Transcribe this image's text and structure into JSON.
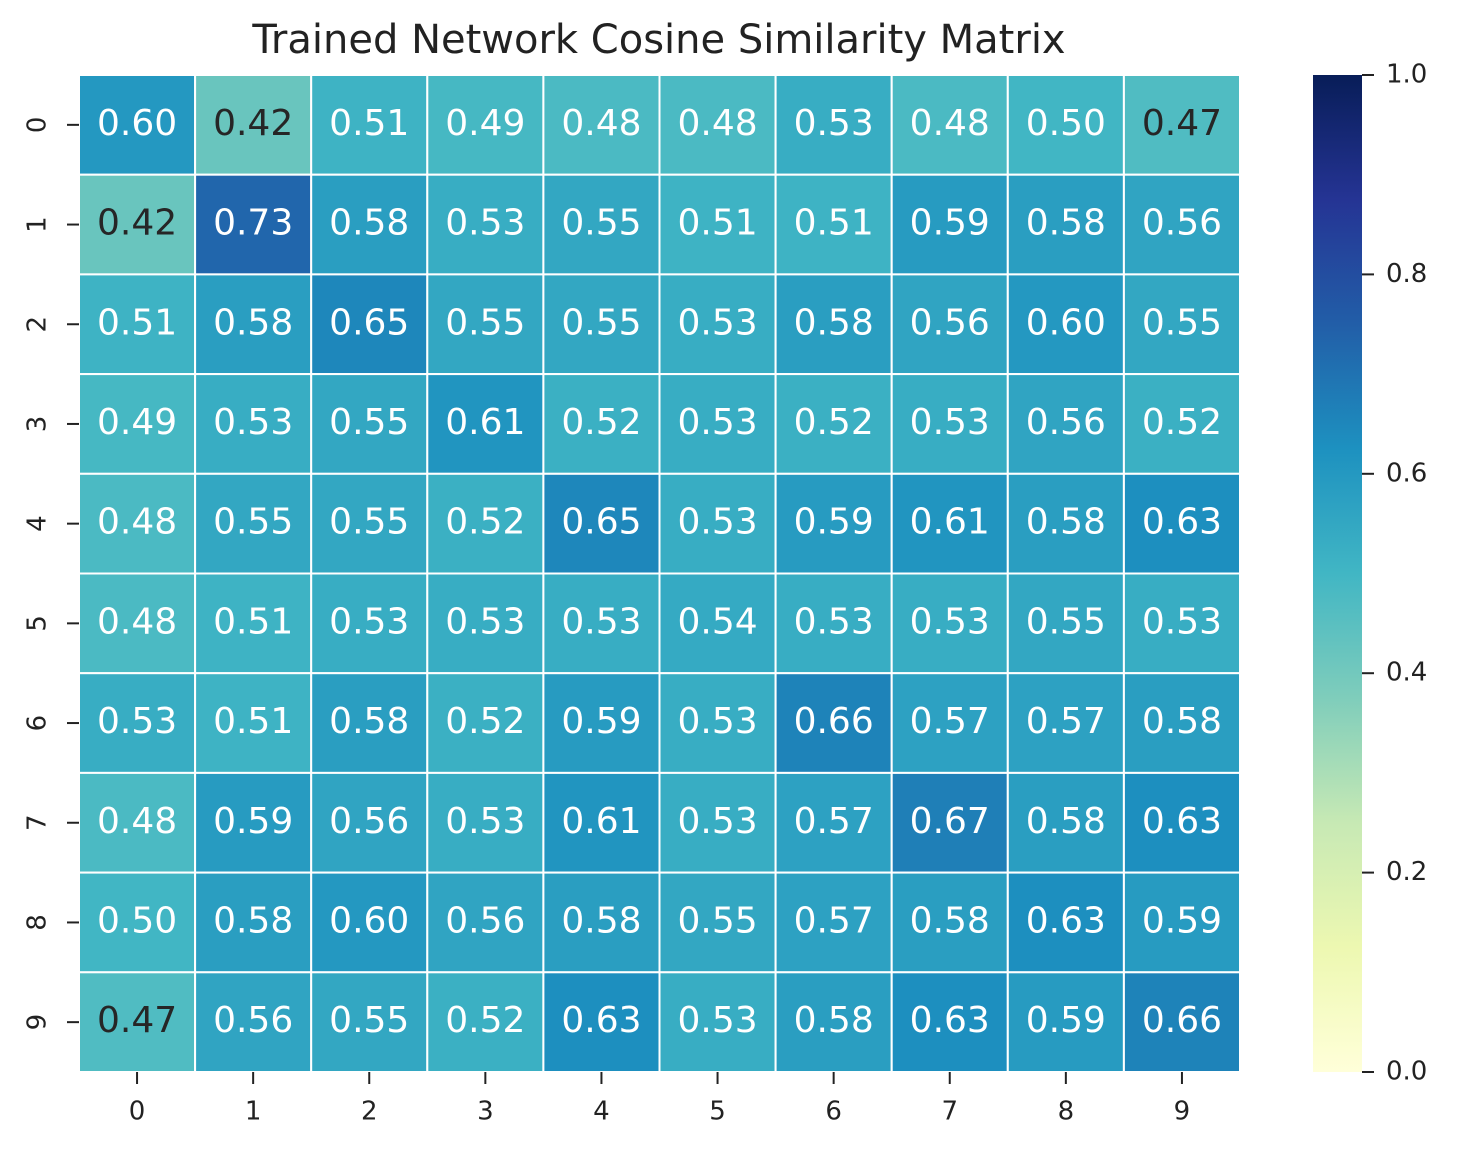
{
  "chart_data": {
    "type": "heatmap",
    "title": "Trained Network Cosine Similarity Matrix",
    "x_categories": [
      "0",
      "1",
      "2",
      "3",
      "4",
      "5",
      "6",
      "7",
      "8",
      "9"
    ],
    "y_categories": [
      "0",
      "1",
      "2",
      "3",
      "4",
      "5",
      "6",
      "7",
      "8",
      "9"
    ],
    "values": [
      [
        0.6,
        0.42,
        0.51,
        0.49,
        0.48,
        0.48,
        0.53,
        0.48,
        0.5,
        0.47
      ],
      [
        0.42,
        0.73,
        0.58,
        0.53,
        0.55,
        0.51,
        0.51,
        0.59,
        0.58,
        0.56
      ],
      [
        0.51,
        0.58,
        0.65,
        0.55,
        0.55,
        0.53,
        0.58,
        0.56,
        0.6,
        0.55
      ],
      [
        0.49,
        0.53,
        0.55,
        0.61,
        0.52,
        0.53,
        0.52,
        0.53,
        0.56,
        0.52
      ],
      [
        0.48,
        0.55,
        0.55,
        0.52,
        0.65,
        0.53,
        0.59,
        0.61,
        0.58,
        0.63
      ],
      [
        0.48,
        0.51,
        0.53,
        0.53,
        0.53,
        0.54,
        0.53,
        0.53,
        0.55,
        0.53
      ],
      [
        0.53,
        0.51,
        0.58,
        0.52,
        0.59,
        0.53,
        0.66,
        0.57,
        0.57,
        0.58
      ],
      [
        0.48,
        0.59,
        0.56,
        0.53,
        0.61,
        0.53,
        0.57,
        0.67,
        0.58,
        0.63
      ],
      [
        0.5,
        0.58,
        0.6,
        0.56,
        0.58,
        0.55,
        0.57,
        0.58,
        0.63,
        0.59
      ],
      [
        0.47,
        0.56,
        0.55,
        0.52,
        0.63,
        0.53,
        0.58,
        0.63,
        0.59,
        0.66
      ]
    ],
    "value_labels": [
      [
        "0.60",
        "0.42",
        "0.51",
        "0.49",
        "0.48",
        "0.48",
        "0.53",
        "0.48",
        "0.50",
        "0.47"
      ],
      [
        "0.42",
        "0.73",
        "0.58",
        "0.53",
        "0.55",
        "0.51",
        "0.51",
        "0.59",
        "0.58",
        "0.56"
      ],
      [
        "0.51",
        "0.58",
        "0.65",
        "0.55",
        "0.55",
        "0.53",
        "0.58",
        "0.56",
        "0.60",
        "0.55"
      ],
      [
        "0.49",
        "0.53",
        "0.55",
        "0.61",
        "0.52",
        "0.53",
        "0.52",
        "0.53",
        "0.56",
        "0.52"
      ],
      [
        "0.48",
        "0.55",
        "0.55",
        "0.52",
        "0.65",
        "0.53",
        "0.59",
        "0.61",
        "0.58",
        "0.63"
      ],
      [
        "0.48",
        "0.51",
        "0.53",
        "0.53",
        "0.53",
        "0.54",
        "0.53",
        "0.53",
        "0.55",
        "0.53"
      ],
      [
        "0.53",
        "0.51",
        "0.58",
        "0.52",
        "0.59",
        "0.53",
        "0.66",
        "0.57",
        "0.57",
        "0.58"
      ],
      [
        "0.48",
        "0.59",
        "0.56",
        "0.53",
        "0.61",
        "0.53",
        "0.57",
        "0.67",
        "0.58",
        "0.63"
      ],
      [
        "0.50",
        "0.58",
        "0.60",
        "0.56",
        "0.58",
        "0.55",
        "0.57",
        "0.58",
        "0.63",
        "0.59"
      ],
      [
        "0.47",
        "0.56",
        "0.55",
        "0.52",
        "0.63",
        "0.53",
        "0.58",
        "0.63",
        "0.59",
        "0.66"
      ]
    ],
    "colormap": [
      "#ffffd9",
      "#edf8b1",
      "#c7e9b4",
      "#7fcdbb",
      "#41b6c4",
      "#1d91c0",
      "#225ea8",
      "#253494",
      "#081d58"
    ],
    "clim": [
      0,
      1
    ],
    "cticks": [
      {
        "value": 0,
        "label": "0.0"
      },
      0.2,
      0.4,
      0.6,
      0.8,
      {
        "value": 1,
        "label": "1.0"
      }
    ]
  }
}
